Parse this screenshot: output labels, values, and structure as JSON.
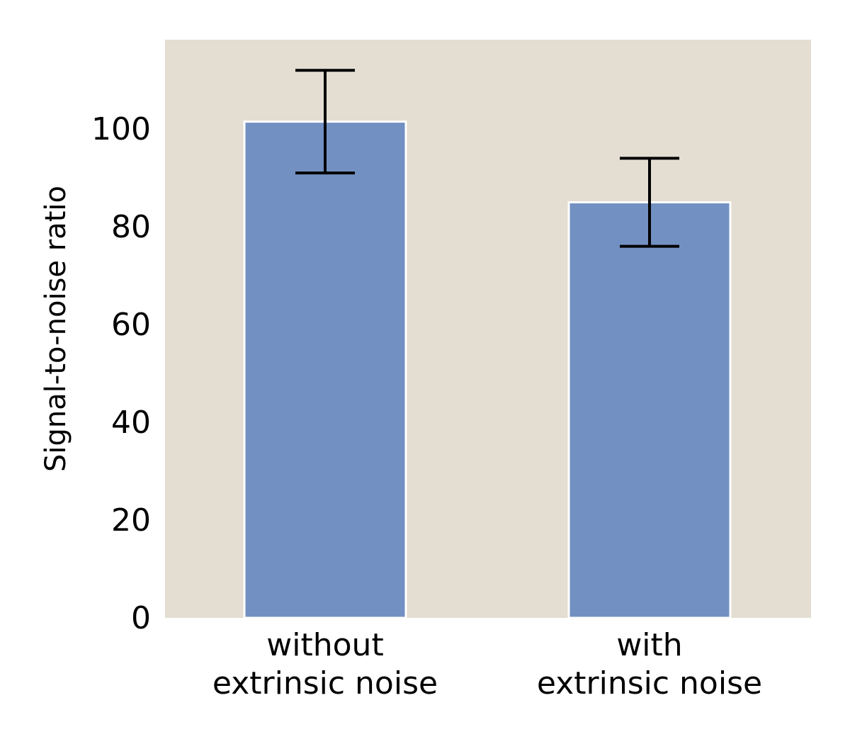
{
  "chart_data": {
    "type": "bar",
    "categories": [
      [
        "without",
        "extrinsic noise"
      ],
      [
        "with",
        "extrinsic noise"
      ]
    ],
    "values": [
      101.5,
      85
    ],
    "error_bars": [
      {
        "low": 91,
        "high": 112
      },
      {
        "low": 76,
        "high": 94
      }
    ],
    "title": "",
    "xlabel": "",
    "ylabel": "Signal-to-noise ratio",
    "ylim": [
      0,
      118
    ],
    "yticks": [
      0,
      20,
      40,
      60,
      80,
      100
    ],
    "grid": false,
    "legend": "none",
    "colors": {
      "background": "#e3ddd2",
      "bar": "#7390c2",
      "bar_edge": "#ffffff",
      "error_bar": "#000000"
    }
  }
}
